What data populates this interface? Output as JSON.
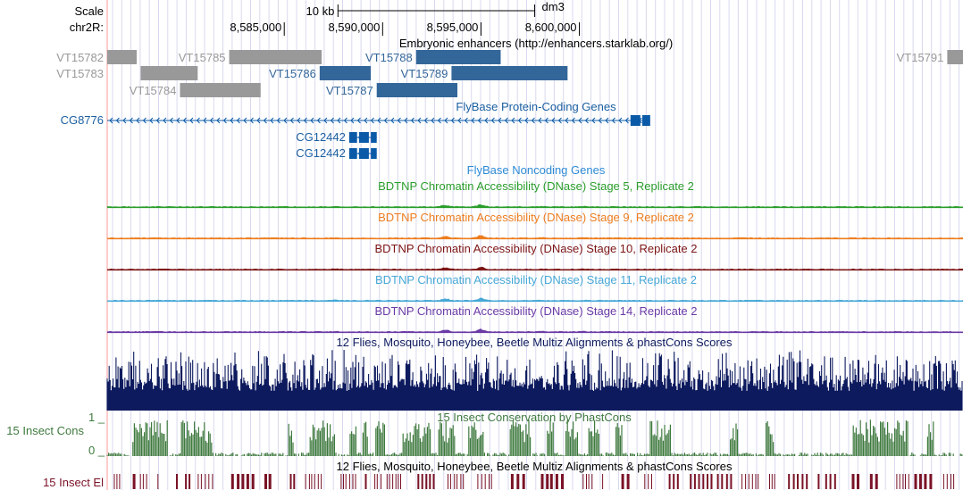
{
  "header": {
    "scale_label": "Scale",
    "chrom_label": "chr2R:",
    "scale_bar_text": "10 kb",
    "assembly": "dm3",
    "positions": [
      "8,585,000",
      "8,590,000",
      "8,595,000",
      "8,600,000"
    ],
    "position_values": [
      8585000,
      8590000,
      8595000,
      8600000
    ],
    "scale_bar_start_bp": 8587730,
    "scale_bar_end_bp": 8597730
  },
  "view": {
    "start_bp": 8576000,
    "end_bp": 8619500
  },
  "colors": {
    "enhancer_gray": "#999999",
    "enhancer_blue": "#336699",
    "gene_blue": "#0a5aa8",
    "gene_label": "#1b5fa0",
    "noncoding_label": "#2e8bd5",
    "dnase_stage5": "#2b9e2b",
    "dnase_stage9": "#ed7d1e",
    "dnase_stage10": "#7d1414",
    "dnase_stage11": "#46a8d6",
    "dnase_stage14": "#6b3aa5",
    "multiz": "#0d1a5e",
    "phastcons": "#3f7a3f",
    "elements": "#7a1226",
    "grid": "#d9d9ef",
    "left_border": "#ff9a9a"
  },
  "tracks": {
    "enhancers": {
      "title": "Embryonic enhancers (http://enhancers.starklab.org/)",
      "items": [
        {
          "name": "VT15782",
          "start": 8576000,
          "end": 8577500,
          "row": 0,
          "color": "gray",
          "label": "left-outside"
        },
        {
          "name": "VT15783",
          "start": 8577700,
          "end": 8580600,
          "row": 1,
          "color": "gray",
          "label": "left-outside"
        },
        {
          "name": "VT15784",
          "start": 8579700,
          "end": 8583800,
          "row": 2,
          "color": "gray",
          "label": "left"
        },
        {
          "name": "VT15785",
          "start": 8582200,
          "end": 8586900,
          "row": 0,
          "color": "gray",
          "label": "left"
        },
        {
          "name": "VT15786",
          "start": 8586800,
          "end": 8589400,
          "row": 1,
          "color": "blue",
          "label": "left"
        },
        {
          "name": "VT15787",
          "start": 8589700,
          "end": 8593800,
          "row": 2,
          "color": "blue",
          "label": "left"
        },
        {
          "name": "VT15788",
          "start": 8591700,
          "end": 8596000,
          "row": 0,
          "color": "blue",
          "label": "left"
        },
        {
          "name": "VT15789",
          "start": 8593500,
          "end": 8599400,
          "row": 1,
          "color": "blue",
          "label": "left"
        },
        {
          "name": "VT15791",
          "start": 8618700,
          "end": 8619500,
          "row": 0,
          "color": "gray",
          "label": "left"
        }
      ]
    },
    "protein_genes": {
      "title": "FlyBase Protein-Coding Genes",
      "genes": [
        {
          "name": "CG8776",
          "start": 8576000,
          "end": 8603600,
          "strand": "-",
          "label": "left-outside",
          "exons": [
            [
              8602600,
              8603100
            ],
            [
              8603200,
              8603600
            ]
          ]
        },
        {
          "name": "CG12442",
          "start": 8588300,
          "end": 8589700,
          "strand": "-",
          "label": "left",
          "exons": [
            [
              8588300,
              8588700
            ],
            [
              8588800,
              8589300
            ],
            [
              8589400,
              8589700
            ]
          ]
        },
        {
          "name": "CG12442",
          "start": 8588300,
          "end": 8589700,
          "strand": "-",
          "label": "left",
          "exons": [
            [
              8588300,
              8588700
            ],
            [
              8588800,
              8589300
            ],
            [
              8589400,
              8589700
            ]
          ]
        }
      ]
    },
    "noncoding": {
      "title": "FlyBase Noncoding Genes"
    },
    "dnase": [
      {
        "title": "BDTNP Chromatin Accessibility (DNase) Stage 5, Replicate 2",
        "color_key": "dnase_stage5",
        "seed": 5
      },
      {
        "title": "BDTNP Chromatin Accessibility (DNase) Stage 9, Replicate 2",
        "color_key": "dnase_stage9",
        "seed": 9
      },
      {
        "title": "BDTNP Chromatin Accessibility (DNase) Stage 10, Replicate 2",
        "color_key": "dnase_stage10",
        "seed": 10
      },
      {
        "title": "BDTNP Chromatin Accessibility (DNase) Stage 11, Replicate 2",
        "color_key": "dnase_stage11",
        "seed": 11
      },
      {
        "title": "BDTNP Chromatin Accessibility (DNase) Stage 14, Replicate 2",
        "color_key": "dnase_stage14",
        "seed": 14
      }
    ],
    "multiz": {
      "title": "12 Flies, Mosquito, Honeybee, Beetle Multiz Alignments & phastCons Scores"
    },
    "phastcons": {
      "title": "15 Insect Conservation by PhastCons",
      "label": "15 Insect Cons",
      "ymax_label": "1 _",
      "ymin_label": "0 _"
    },
    "elements": {
      "title": "12 Flies, Mosquito, Honeybee, Beetle Multiz Alignments & phastCons Scores",
      "label": "15 Insect El"
    }
  }
}
